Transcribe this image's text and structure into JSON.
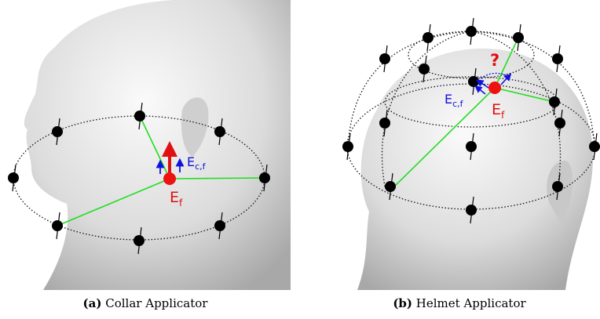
{
  "panels": [
    {
      "field": {
        "symbol": "E",
        "sub": "f"
      },
      "component": {
        "symbol": "E",
        "sub": "c,f"
      },
      "caption": {
        "tag": "(a)",
        "text": "Collar Applicator"
      }
    },
    {
      "field": {
        "symbol": "E",
        "sub": "f"
      },
      "component": {
        "symbol": "E",
        "sub": "c,f"
      },
      "question": "?",
      "caption": {
        "tag": "(b)",
        "text": "Helmet Applicator"
      }
    }
  ]
}
